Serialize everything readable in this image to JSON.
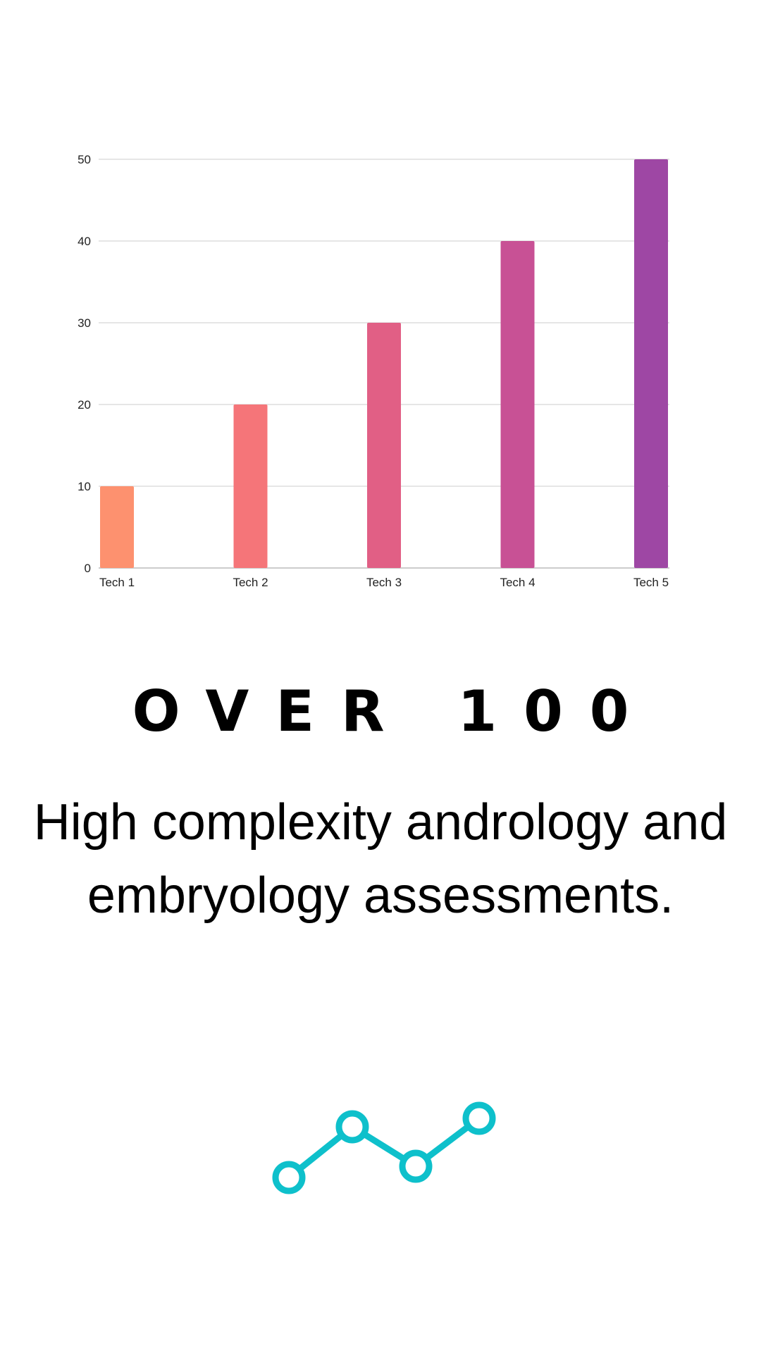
{
  "chart_data": {
    "type": "bar",
    "categories": [
      "Tech 1",
      "Tech 2",
      "Tech 3",
      "Tech 4",
      "Tech 5"
    ],
    "values": [
      10,
      20,
      30,
      40,
      50
    ],
    "ylim": [
      0,
      50
    ],
    "yticks": [
      0,
      10,
      20,
      30,
      40,
      50
    ],
    "grid": true,
    "colors": [
      "#fd916f",
      "#f57579",
      "#e15f85",
      "#c85195",
      "#9e47a4"
    ]
  },
  "headline": "OVER 100",
  "subtitle": {
    "line1": "High complexity andrology and",
    "line2": "embryology assessments."
  },
  "icon": {
    "name": "trend-line-icon",
    "color": "#0ec0cb"
  }
}
